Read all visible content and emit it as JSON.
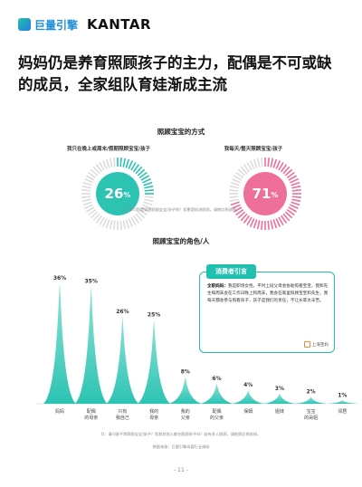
{
  "header": {
    "logo_cn": "巨量引擎",
    "logo_kantar": "KANTAR",
    "title_line1": "妈妈仍是养育照顾孩子的主力，配偶是不可或缺",
    "title_line2": "的成员，全家组队育娃渐成主流"
  },
  "section1": {
    "title": "照顾宝宝的方式",
    "left_label": "我只在晚上或周末/假期照顾宝宝/孩子",
    "left_value": "26",
    "left_unit": "%",
    "right_label": "我每天/整天照顾宝宝/孩子",
    "right_value": "71",
    "right_unit": "%",
    "note": "Q：请问您是如何照顾宝宝/孩子的？如果是轮流照顾，请按比例选择。"
  },
  "section2": {
    "title": "照顾宝宝的角色/人"
  },
  "quote": {
    "tag": "消费者引言",
    "speaker": "全职妈妈：",
    "text": "我是职场女性，平时上班父母会协助照看宝宝，我和先生每周末会在工作日晚上和周末，我会在家里照顾宝宝和先生，我每天都会参与照看孩子，孩子是我们的责任，不让长辈太辛苦。",
    "source": "上海宝妈"
  },
  "footnotes": {
    "question": "Q：请问谁平常照顾宝宝/孩子？您和其他人都在照顾孩子吗？若有多人照顾，请依照比例选择。",
    "source": "数据来源：巨量引擎母婴行业调研",
    "page": "- 11 -"
  },
  "colors": {
    "teal": "#2cc3b3",
    "pink": "#ee6f9a",
    "accent": "#20bfae"
  },
  "chart_data": {
    "type": "bar",
    "title": "照顾宝宝的角色/人",
    "categories": [
      "妈妈",
      "配偶的母亲",
      "只有我自己",
      "我的母亲",
      "我的父亲",
      "配偶的父亲",
      "保姆",
      "姐妹",
      "宝宝的哥姐",
      "邻居"
    ],
    "values": [
      36,
      35,
      26,
      25,
      8,
      6,
      4,
      3,
      2,
      1
    ],
    "value_labels": [
      "36%",
      "35%",
      "26%",
      "25%",
      "8%",
      "6%",
      "4%",
      "3%",
      "2%",
      "1%"
    ],
    "ylim": [
      0,
      40
    ],
    "grid": false,
    "bar_color": "#2cc3b3"
  }
}
